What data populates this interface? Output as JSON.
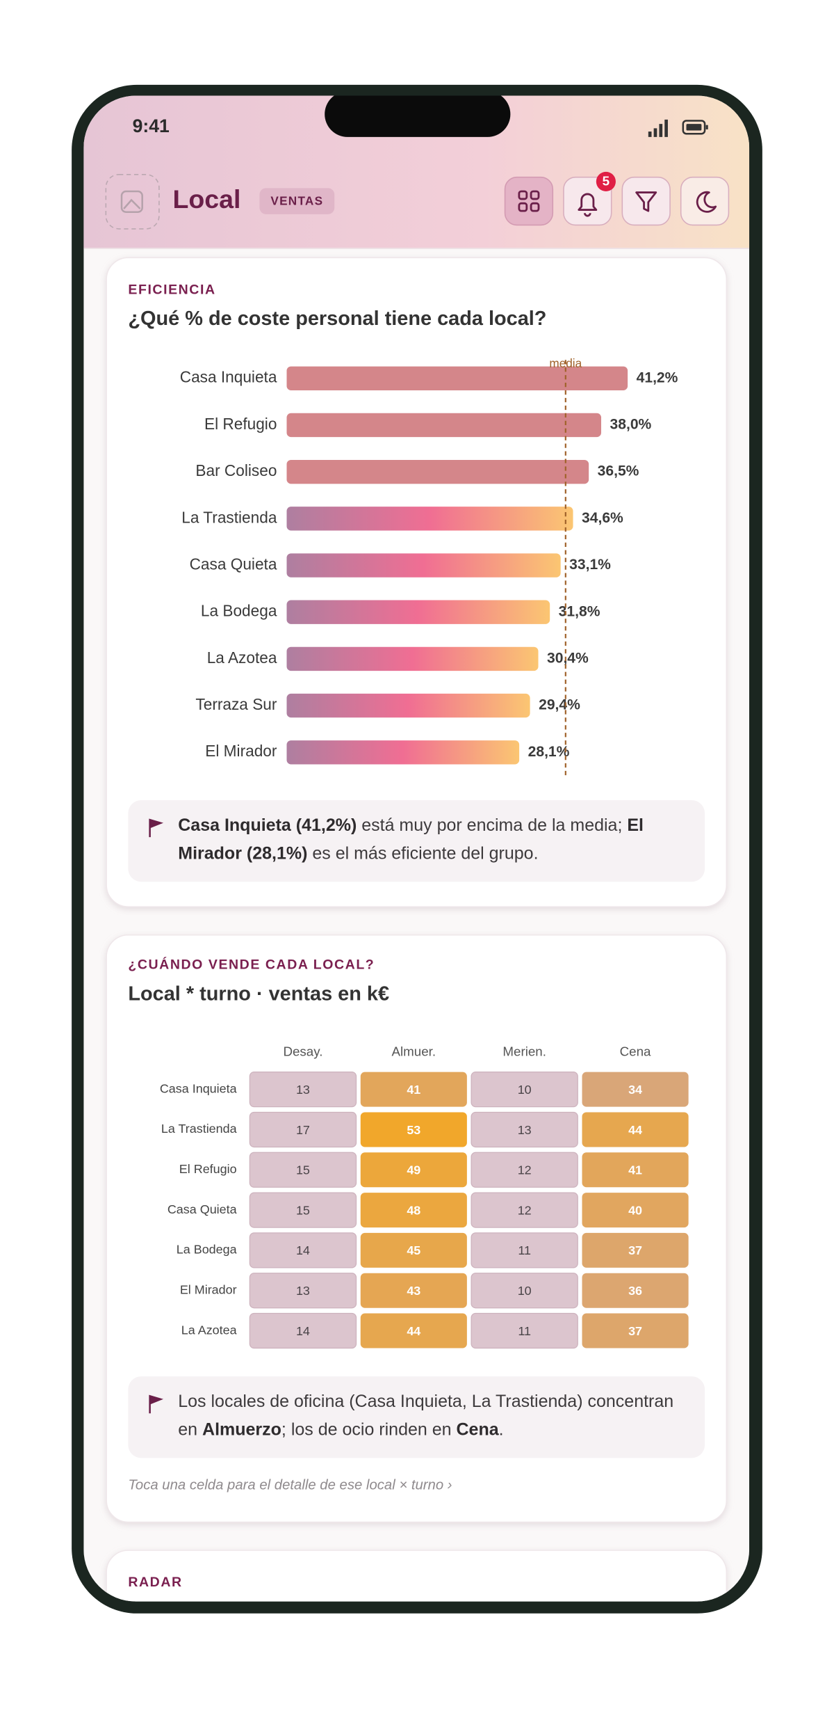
{
  "status": {
    "time": "9:41"
  },
  "header": {
    "title": "Local",
    "badge": "VENTAS",
    "notifications": 5
  },
  "chart_data": [
    {
      "type": "bar",
      "orientation": "horizontal",
      "eyebrow": "EFICIENCIA",
      "title": "¿Qué % de coste personal tiene cada local?",
      "categories": [
        "Casa Inquieta",
        "El Refugio",
        "Bar Coliseo",
        "La Trastienda",
        "Casa Quieta",
        "La Bodega",
        "La Azotea",
        "Terraza Sur",
        "El Mirador"
      ],
      "values": [
        41.2,
        38.0,
        36.5,
        34.6,
        33.1,
        31.8,
        30.4,
        29.4,
        28.1
      ],
      "value_labels": [
        "41,2%",
        "38,0%",
        "36,5%",
        "34,6%",
        "33,1%",
        "31,8%",
        "30,4%",
        "29,4%",
        "28,1%"
      ],
      "colors": [
        "#d4868a",
        "#d4868a",
        "#d4868a",
        "gradient",
        "gradient",
        "gradient",
        "gradient",
        "gradient",
        "gradient"
      ],
      "gradient": [
        "#ae7fa0",
        "#f06e93",
        "#fbc672"
      ],
      "reference_line": {
        "label": "media",
        "value": 33.7,
        "color": "#a0622a"
      },
      "note": [
        {
          "text": "Casa Inquieta (41,2%)",
          "bold": true
        },
        {
          "text": " está muy por encima de la media; "
        },
        {
          "text": "El Mirador (28,1%)",
          "bold": true
        },
        {
          "text": " es el más eficiente del grupo."
        }
      ]
    },
    {
      "type": "heatmap",
      "eyebrow": "¿CUÁNDO VENDE CADA LOCAL?",
      "title": "Local * turno · ventas en k€",
      "columns": [
        "Desay.",
        "Almuer.",
        "Merien.",
        "Cena"
      ],
      "rows": [
        "Casa Inquieta",
        "La Trastienda",
        "El Refugio",
        "Casa Quieta",
        "La Bodega",
        "El Mirador",
        "La Azotea"
      ],
      "values": [
        [
          13,
          41,
          10,
          34
        ],
        [
          17,
          53,
          13,
          44
        ],
        [
          15,
          49,
          12,
          41
        ],
        [
          15,
          48,
          12,
          40
        ],
        [
          14,
          45,
          11,
          37
        ],
        [
          13,
          43,
          10,
          36
        ],
        [
          14,
          44,
          11,
          37
        ]
      ],
      "colors": [
        "#dcc5ce",
        "#d9a679",
        "#f1a72b"
      ],
      "note": [
        {
          "text": "Los locales de oficina (Casa Inquieta, La Trastienda) concentran en "
        },
        {
          "text": "Almuerzo",
          "bold": true
        },
        {
          "text": "; los de ocio rinden en "
        },
        {
          "text": "Cena",
          "bold": true
        },
        {
          "text": "."
        }
      ],
      "hint": "Toca una celda para el detalle de ese local × turno ›"
    }
  ],
  "next_card": {
    "eyebrow": "RADAR"
  }
}
